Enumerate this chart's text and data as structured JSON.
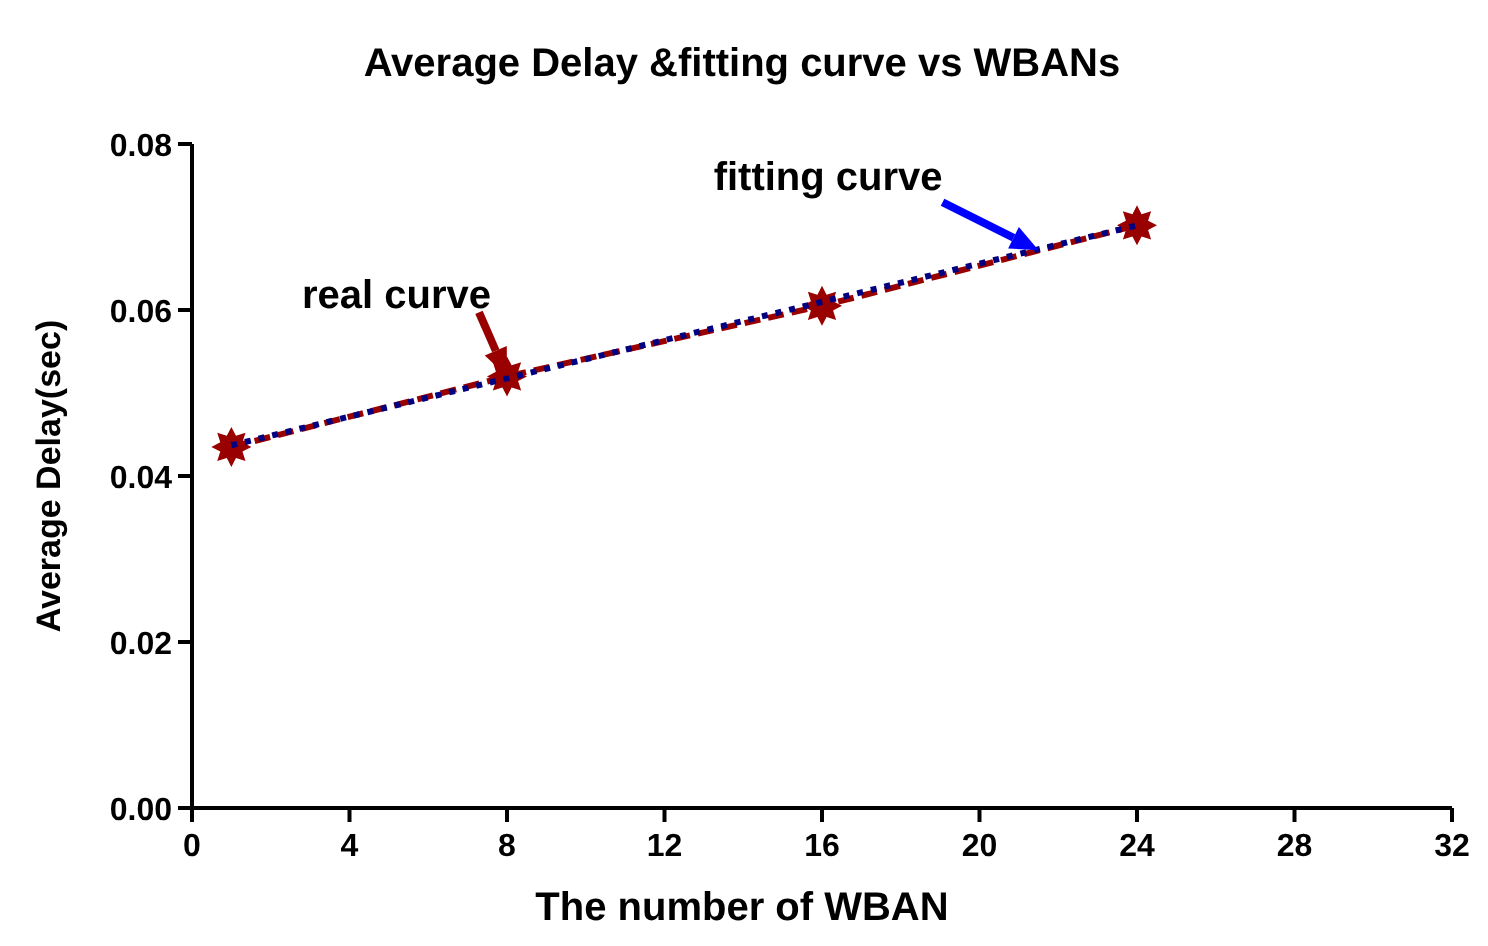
{
  "chart_data": {
    "type": "line",
    "title": "Average Delay &fitting curve vs WBANs",
    "xlabel": "The number of WBAN",
    "ylabel": "Average Delay(sec)",
    "xlim": [
      0,
      32
    ],
    "xticks": [
      0,
      4,
      8,
      12,
      16,
      20,
      24,
      28,
      32
    ],
    "ylim": [
      0,
      0.08
    ],
    "yticks": [
      {
        "value": 0,
        "label": "0.00"
      },
      {
        "value": 0.02,
        "label": "0.02"
      },
      {
        "value": 0.04,
        "label": "0.04"
      },
      {
        "value": 0.06,
        "label": "0.06"
      },
      {
        "value": 0.08,
        "label": "0.08"
      }
    ],
    "x": [
      1,
      8,
      16,
      24
    ],
    "grid": false,
    "series": [
      {
        "type": "line",
        "color": "#990000",
        "values": [
          0.0435,
          0.052,
          0.0605,
          0.0702
        ],
        "marker": "star",
        "line_style": "dashed"
      },
      {
        "type": "line",
        "color": "#000080",
        "x": [
          1,
          24
        ],
        "values": [
          0.0437,
          0.0702
        ],
        "marker": "none",
        "line_style": "dotted"
      }
    ],
    "annotations": [
      {
        "text": "real curve",
        "x": 8,
        "y": 0.052
      },
      {
        "text": "fitting curve",
        "x": 21.5,
        "y": 0.0672
      }
    ]
  }
}
